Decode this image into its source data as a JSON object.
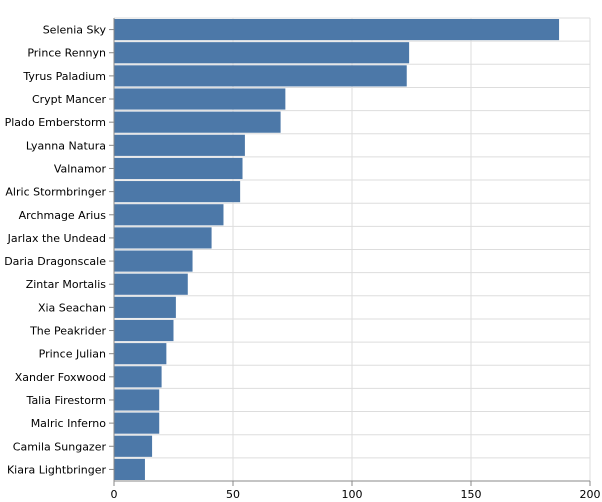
{
  "chart_data": {
    "type": "bar",
    "orientation": "horizontal",
    "categories": [
      "Selenia Sky",
      "Prince Rennyn",
      "Tyrus Paladium",
      "Crypt Mancer",
      "Plado Emberstorm",
      "Lyanna Natura",
      "Valnamor",
      "Alric Stormbringer",
      "Archmage Arius",
      "Jarlax the Undead",
      "Daria Dragonscale",
      "Zintar Mortalis",
      "Xia Seachan",
      "The Peakrider",
      "Prince Julian",
      "Xander Foxwood",
      "Talia Firestorm",
      "Malric Inferno",
      "Camila Sungazer",
      "Kiara Lightbringer"
    ],
    "values": [
      187,
      124,
      123,
      72,
      70,
      55,
      54,
      53,
      46,
      41,
      33,
      31,
      26,
      25,
      22,
      20,
      19,
      19,
      16,
      13
    ],
    "x_ticks": [
      "0",
      "50",
      "100",
      "150",
      "200"
    ],
    "xlim": [
      0,
      200
    ],
    "title": "",
    "xlabel": "",
    "ylabel": "",
    "grid": true,
    "bar_color": "#4c78a8"
  }
}
